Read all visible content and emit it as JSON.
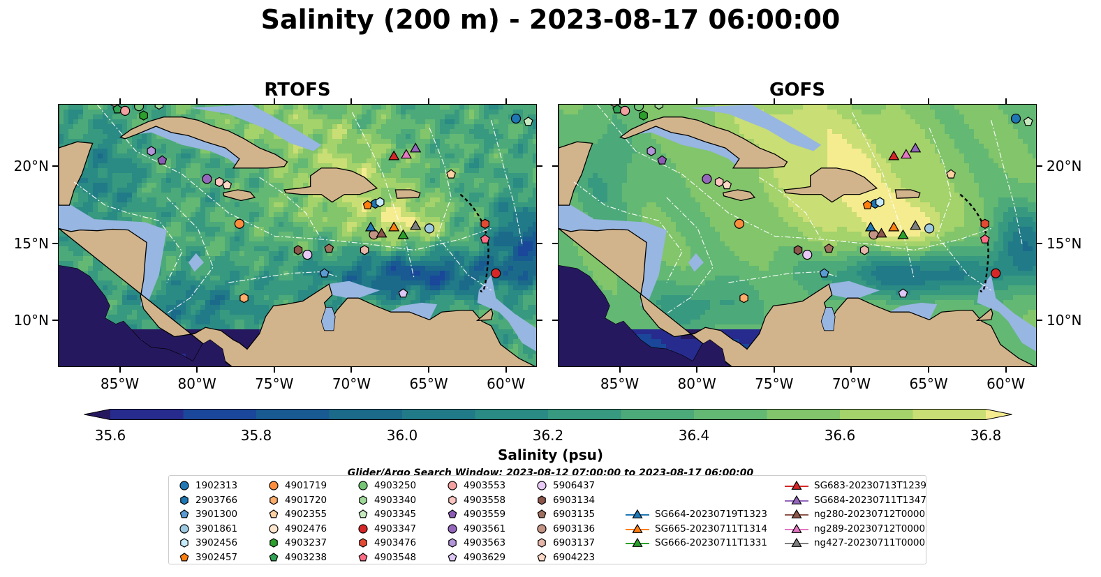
{
  "title": "Salinity (200 m) - 2023-08-17 06:00:00",
  "panels": [
    {
      "name": "rtofs",
      "title": "RTOFS"
    },
    {
      "name": "gofs",
      "title": "GOFS"
    }
  ],
  "axes": {
    "lon_range": [
      -89,
      -58
    ],
    "lat_range": [
      7,
      24
    ],
    "x_ticks": [
      {
        "value": -85,
        "label": "85°W"
      },
      {
        "value": -80,
        "label": "80°W"
      },
      {
        "value": -75,
        "label": "75°W"
      },
      {
        "value": -70,
        "label": "70°W"
      },
      {
        "value": -65,
        "label": "65°W"
      },
      {
        "value": -60,
        "label": "60°W"
      }
    ],
    "y_ticks": [
      {
        "value": 20,
        "label": "20°N"
      },
      {
        "value": 15,
        "label": "15°N"
      },
      {
        "value": 10,
        "label": "10°N"
      }
    ]
  },
  "colorbar": {
    "label": "Salinity (psu)",
    "min": 35.5,
    "max": 36.9,
    "levels_step": 0.1,
    "extend": "both",
    "ticks": [
      "35.6",
      "35.8",
      "36.0",
      "36.2",
      "36.4",
      "36.6",
      "36.8"
    ],
    "tick_values": [
      35.6,
      35.8,
      36.0,
      36.2,
      36.4,
      36.6,
      36.8
    ],
    "colors": [
      "#26185f",
      "#272b8e",
      "#1a4799",
      "#185a91",
      "#1b6a8a",
      "#217a87",
      "#2a8a84",
      "#37997f",
      "#4ca97a",
      "#63b873",
      "#82c56b",
      "#a4d26b",
      "#c9de74",
      "#f5ec90"
    ]
  },
  "search_window": "Glider/Argo Search Window: 2023-08-12 07:00:00 to 2023-08-17 06:00:00",
  "colors": {
    "land": "#d2b48c",
    "shelf": "#97b6e1",
    "frame": "#000000"
  },
  "platforms": [
    {
      "id": "1902313",
      "marker": "circle",
      "color": "#1f77b4",
      "lon": -59.4,
      "lat": 23.1
    },
    {
      "id": "2903766",
      "marker": "hexagon",
      "color": "#1f77b4",
      "lon": -68.5,
      "lat": 17.6
    },
    {
      "id": "3901300",
      "marker": "pentagon",
      "color": "#5a9bd3",
      "lon": -71.8,
      "lat": 13.1
    },
    {
      "id": "3901861",
      "marker": "circle",
      "color": "#9ecae1",
      "lon": -65.0,
      "lat": 16.0
    },
    {
      "id": "3902456",
      "marker": "hexagon",
      "color": "#c6ebfc",
      "lon": -68.2,
      "lat": 17.7
    },
    {
      "id": "3902457",
      "marker": "pentagon",
      "color": "#ff7f0e",
      "lon": -69.0,
      "lat": 17.5
    },
    {
      "id": "4901719",
      "marker": "circle",
      "color": "#fd8d3c",
      "lon": -77.3,
      "lat": 16.3
    },
    {
      "id": "4901720",
      "marker": "hexagon",
      "color": "#fdae6b",
      "lon": -77.0,
      "lat": 11.5
    },
    {
      "id": "4902355",
      "marker": "pentagon",
      "color": "#fdd0a2",
      "lon": -63.6,
      "lat": 19.5
    },
    {
      "id": "4902476",
      "marker": "circle",
      "color": "#fee6ce",
      "lon": -85.4,
      "lat": 24.2
    },
    {
      "id": "4903237",
      "marker": "hexagon",
      "color": "#2ca02c",
      "lon": -83.5,
      "lat": 23.3
    },
    {
      "id": "4903238",
      "marker": "pentagon",
      "color": "#31a354",
      "lon": -85.2,
      "lat": 23.7
    },
    {
      "id": "4903250",
      "marker": "circle",
      "color": "#74c476",
      "lon": -83.8,
      "lat": 23.9
    },
    {
      "id": "4903340",
      "marker": "hexagon",
      "color": "#a1d99b",
      "lon": -82.5,
      "lat": 24.0
    },
    {
      "id": "4903345",
      "marker": "pentagon",
      "color": "#c7e9c0",
      "lon": -58.6,
      "lat": 22.9
    },
    {
      "id": "4903347",
      "marker": "circle",
      "color": "#d62728",
      "lon": -60.7,
      "lat": 13.1
    },
    {
      "id": "4903476",
      "marker": "hexagon",
      "color": "#e34a33",
      "lon": -61.4,
      "lat": 16.3
    },
    {
      "id": "4903548",
      "marker": "pentagon",
      "color": "#fc6c85",
      "lon": -61.4,
      "lat": 15.3
    },
    {
      "id": "4903553",
      "marker": "circle",
      "color": "#f2a0a0",
      "lon": -84.7,
      "lat": 23.6
    },
    {
      "id": "4903558",
      "marker": "hexagon",
      "color": "#fcc5c0",
      "lon": -78.6,
      "lat": 19.0
    },
    {
      "id": "4903559",
      "marker": "pentagon",
      "color": "#8c5cb5",
      "lon": -82.3,
      "lat": 20.4
    },
    {
      "id": "4903561",
      "marker": "circle",
      "color": "#9467bd",
      "lon": -79.4,
      "lat": 19.2
    },
    {
      "id": "4903563",
      "marker": "hexagon",
      "color": "#b294d9",
      "lon": -83.0,
      "lat": 21.0
    },
    {
      "id": "4903629",
      "marker": "pentagon",
      "color": "#dcc6f4",
      "lon": -66.7,
      "lat": 11.8
    },
    {
      "id": "5906437",
      "marker": "circle",
      "color": "#e8c9f5",
      "lon": -72.9,
      "lat": 14.3
    },
    {
      "id": "6903134",
      "marker": "hexagon",
      "color": "#8c564b",
      "lon": -73.5,
      "lat": 14.6
    },
    {
      "id": "6903135",
      "marker": "pentagon",
      "color": "#a0705f",
      "lon": -71.5,
      "lat": 14.7
    },
    {
      "id": "6903136",
      "marker": "circle",
      "color": "#c49484",
      "lon": -68.6,
      "lat": 15.6
    },
    {
      "id": "6903137",
      "marker": "hexagon",
      "color": "#e7b6a8",
      "lon": -69.2,
      "lat": 14.6
    },
    {
      "id": "6904223",
      "marker": "pentagon",
      "color": "#fdd9c7",
      "lon": -78.1,
      "lat": 18.8
    },
    {
      "id": "SG664-20230719T1323",
      "marker": "triangle",
      "line": true,
      "color": "#1f77b4",
      "lon": -68.8,
      "lat": 16.1
    },
    {
      "id": "SG665-20230711T1314",
      "marker": "triangle",
      "line": true,
      "color": "#ff7f0e",
      "lon": -67.3,
      "lat": 16.1
    },
    {
      "id": "SG666-20230711T1331",
      "marker": "triangle",
      "line": true,
      "color": "#2ca02c",
      "lon": -66.7,
      "lat": 15.6
    },
    {
      "id": "SG683-20230713T1239",
      "marker": "triangle",
      "line": true,
      "color": "#d62728",
      "lon": -67.3,
      "lat": 20.7
    },
    {
      "id": "SG684-20230711T1347",
      "marker": "triangle",
      "line": true,
      "color": "#9467bd",
      "lon": -65.9,
      "lat": 21.2
    },
    {
      "id": "ng280-20230712T0000",
      "marker": "triangle",
      "line": true,
      "color": "#8c564b",
      "lon": -68.1,
      "lat": 15.7
    },
    {
      "id": "ng289-20230712T0000",
      "marker": "triangle",
      "line": true,
      "color": "#e377c2",
      "lon": -66.5,
      "lat": 20.8
    },
    {
      "id": "ng427-20230711T0000",
      "marker": "triangle",
      "line": true,
      "color": "#7f7f7f",
      "lon": -65.9,
      "lat": 16.2
    }
  ]
}
